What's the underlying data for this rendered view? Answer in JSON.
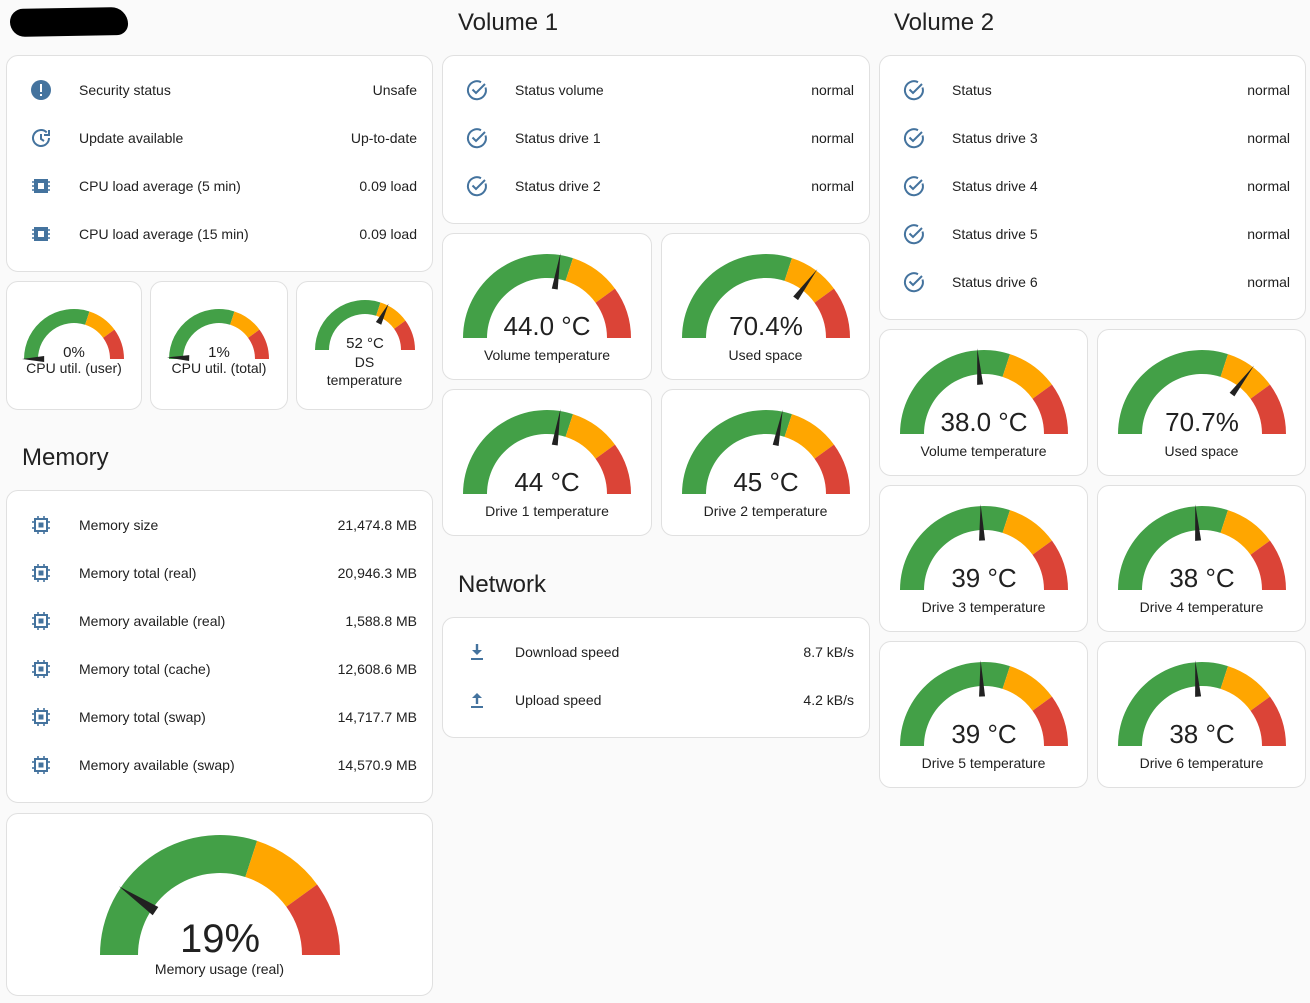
{
  "colors": {
    "green": "#43a047",
    "orange": "#ffa600",
    "red": "#db4437",
    "icon": "#44739e",
    "needle": "#212121",
    "bg": "#e0e0e0"
  },
  "titles": {
    "volume1": "Volume 1",
    "volume2": "Volume 2",
    "memory": "Memory",
    "network": "Network"
  },
  "system": [
    {
      "icon": "alert-circle-icon",
      "label": "Security status",
      "value": "Unsafe"
    },
    {
      "icon": "update-icon",
      "label": "Update available",
      "value": "Up-to-date"
    },
    {
      "icon": "cpu-icon",
      "label": "CPU load average (5 min)",
      "value": "0.09 load"
    },
    {
      "icon": "cpu-icon",
      "label": "CPU load average (15 min)",
      "value": "0.09 load"
    }
  ],
  "system_gauges": [
    {
      "value_text": "0%",
      "name": "CPU util. (user)",
      "fraction": 0.0
    },
    {
      "value_text": "1%",
      "name": "CPU util. (total)",
      "fraction": 0.01
    },
    {
      "value_text": "52 °C",
      "name": "DS temperature",
      "fraction": 0.65
    }
  ],
  "volume1": {
    "status": [
      {
        "icon": "check-circle-icon",
        "label": "Status volume",
        "value": "normal"
      },
      {
        "icon": "check-circle-icon",
        "label": "Status drive 1",
        "value": "normal"
      },
      {
        "icon": "check-circle-icon",
        "label": "Status drive 2",
        "value": "normal"
      }
    ],
    "gauges": [
      {
        "value_text": "44.0 °C",
        "name": "Volume temperature",
        "fraction": 0.55
      },
      {
        "value_text": "70.4%",
        "name": "Used space",
        "fraction": 0.704
      },
      {
        "value_text": "44 °C",
        "name": "Drive 1 temperature",
        "fraction": 0.55
      },
      {
        "value_text": "45 °C",
        "name": "Drive 2 temperature",
        "fraction": 0.5625
      }
    ]
  },
  "volume2": {
    "status": [
      {
        "icon": "check-circle-icon",
        "label": "Status",
        "value": "normal"
      },
      {
        "icon": "check-circle-icon",
        "label": "Status drive 3",
        "value": "normal"
      },
      {
        "icon": "check-circle-icon",
        "label": "Status drive 4",
        "value": "normal"
      },
      {
        "icon": "check-circle-icon",
        "label": "Status drive 5",
        "value": "normal"
      },
      {
        "icon": "check-circle-icon",
        "label": "Status drive 6",
        "value": "normal"
      }
    ],
    "gauges": [
      {
        "value_text": "38.0 °C",
        "name": "Volume temperature",
        "fraction": 0.475
      },
      {
        "value_text": "70.7%",
        "name": "Used space",
        "fraction": 0.707
      },
      {
        "value_text": "39 °C",
        "name": "Drive 3 temperature",
        "fraction": 0.4875
      },
      {
        "value_text": "38 °C",
        "name": "Drive 4 temperature",
        "fraction": 0.475
      },
      {
        "value_text": "39 °C",
        "name": "Drive 5 temperature",
        "fraction": 0.4875
      },
      {
        "value_text": "38 °C",
        "name": "Drive 6 temperature",
        "fraction": 0.475
      }
    ]
  },
  "memory": [
    {
      "icon": "memory-chip-icon",
      "label": "Memory size",
      "value": "21,474.8 MB"
    },
    {
      "icon": "memory-chip-icon",
      "label": "Memory total (real)",
      "value": "20,946.3 MB"
    },
    {
      "icon": "memory-chip-icon",
      "label": "Memory available (real)",
      "value": "1,588.8 MB"
    },
    {
      "icon": "memory-chip-icon",
      "label": "Memory total (cache)",
      "value": "12,608.6 MB"
    },
    {
      "icon": "memory-chip-icon",
      "label": "Memory total (swap)",
      "value": "14,717.7 MB"
    },
    {
      "icon": "memory-chip-icon",
      "label": "Memory available (swap)",
      "value": "14,570.9 MB"
    }
  ],
  "memory_gauge": {
    "value_text": "19%",
    "name": "Memory usage (real)",
    "fraction": 0.19
  },
  "network": [
    {
      "icon": "download-icon",
      "label": "Download speed",
      "value": "8.7 kB/s"
    },
    {
      "icon": "upload-icon",
      "label": "Upload speed",
      "value": "4.2 kB/s"
    }
  ],
  "severity": {
    "orange_from": 0.6,
    "red_from": 0.8
  }
}
